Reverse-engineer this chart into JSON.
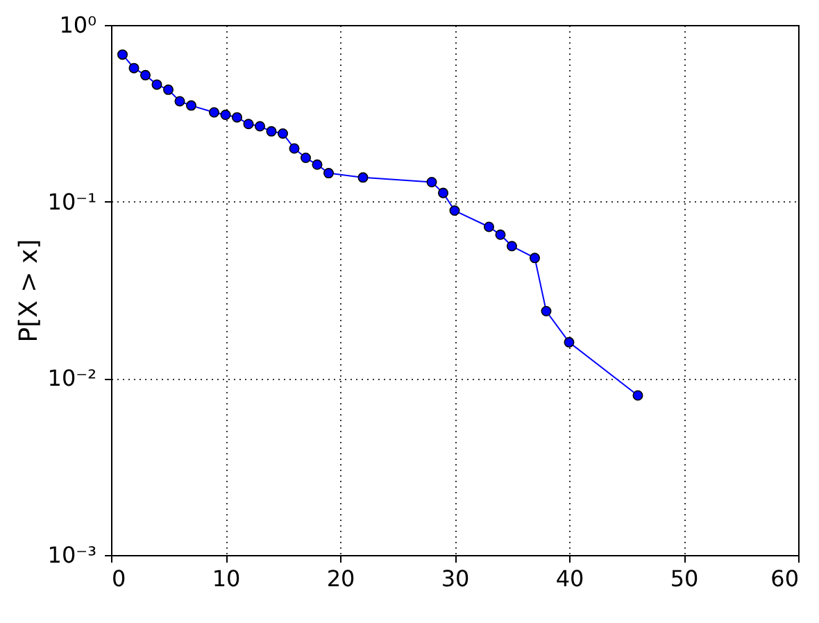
{
  "chart_data": {
    "type": "line",
    "ylabel": "P[X > x]",
    "x": [
      1,
      2,
      3,
      4,
      5,
      6,
      7,
      9,
      10,
      11,
      12,
      13,
      14,
      15,
      16,
      17,
      18,
      19,
      22,
      28,
      29,
      30,
      33,
      34,
      35,
      37,
      38,
      40,
      46
    ],
    "series": [
      {
        "color": "#0000ff",
        "values": [
          0.68,
          0.57,
          0.52,
          0.46,
          0.43,
          0.37,
          0.35,
          0.32,
          0.31,
          0.3,
          0.275,
          0.267,
          0.25,
          0.243,
          0.2,
          0.177,
          0.162,
          0.145,
          0.137,
          0.129,
          0.112,
          0.089,
          0.072,
          0.065,
          0.056,
          0.048,
          0.024,
          0.016,
          0.008
        ]
      }
    ],
    "xlim": [
      0,
      60
    ],
    "xticks": [
      0,
      10,
      20,
      30,
      40,
      50,
      60
    ],
    "ylim": [
      0.001,
      1
    ],
    "yticks": [
      {
        "value": 0.001,
        "label": "10⁻³"
      },
      {
        "value": 0.01,
        "label": "10⁻²"
      },
      {
        "value": 0.1,
        "label": "10⁻¹"
      },
      {
        "value": 1,
        "label": "10⁰"
      }
    ],
    "log": true,
    "grid": true,
    "marker": "circle",
    "line_style": "solid"
  }
}
